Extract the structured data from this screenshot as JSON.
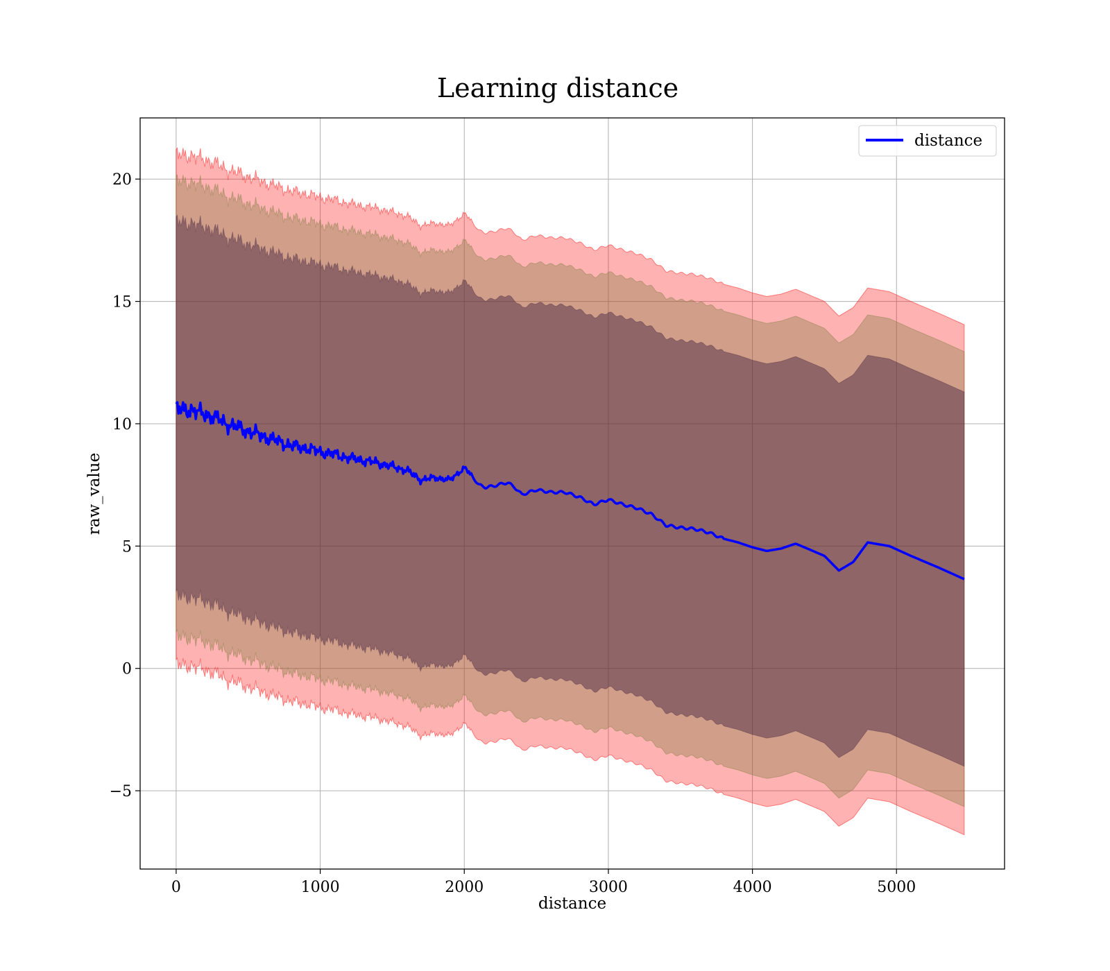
{
  "chart_data": {
    "type": "line",
    "title": "Learning distance",
    "xlabel": "distance",
    "ylabel": "raw_value",
    "xlim": [
      -250,
      5750
    ],
    "ylim": [
      -8.2,
      22.5
    ],
    "xticks": [
      0,
      1000,
      2000,
      3000,
      4000,
      5000
    ],
    "xtick_labels": [
      "0",
      "1000",
      "2000",
      "3000",
      "4000",
      "5000"
    ],
    "yticks": [
      -5,
      0,
      5,
      10,
      15,
      20
    ],
    "ytick_labels": [
      "−5",
      "0",
      "5",
      "10",
      "15",
      "20"
    ],
    "grid": true,
    "legend_position": "top-right",
    "colors": {
      "line": "#0000ff",
      "band": "#ff0000",
      "band_inner": "#3d1e3d",
      "band_mid": "#7a7a3d",
      "grid": "#b0b0b0"
    },
    "series": [
      {
        "name": "distance",
        "x": [
          0,
          50,
          100,
          150,
          200,
          250,
          300,
          350,
          400,
          450,
          500,
          600,
          700,
          800,
          900,
          1000,
          1100,
          1200,
          1300,
          1400,
          1500,
          1600,
          1700,
          1800,
          1900,
          2000,
          2050,
          2100,
          2150,
          2200,
          2300,
          2350,
          2400,
          2500,
          2600,
          2700,
          2800,
          2900,
          3000,
          3100,
          3200,
          3300,
          3400,
          3500,
          3600,
          3700,
          3800,
          3900,
          4000,
          4100,
          4200,
          4300,
          4400,
          4500,
          4600,
          4700,
          4800,
          4950,
          5100,
          5300,
          5470
        ],
        "y": [
          10.6,
          10.55,
          10.6,
          10.45,
          10.4,
          10.3,
          10.15,
          10.0,
          9.9,
          9.8,
          9.7,
          9.5,
          9.3,
          9.1,
          9.0,
          8.85,
          8.75,
          8.6,
          8.5,
          8.4,
          8.25,
          8.1,
          7.7,
          7.8,
          7.7,
          8.2,
          7.9,
          7.5,
          7.4,
          7.45,
          7.6,
          7.4,
          7.1,
          7.3,
          7.2,
          7.2,
          7.0,
          6.7,
          6.9,
          6.7,
          6.55,
          6.3,
          5.85,
          5.75,
          5.7,
          5.55,
          5.3,
          5.15,
          4.95,
          4.8,
          4.9,
          5.1,
          4.85,
          4.6,
          4.0,
          4.35,
          5.15,
          5.0,
          4.6,
          4.1,
          3.65
        ]
      }
    ],
    "bands": [
      {
        "upper_offset": 10.4,
        "lower_offset": -10.45
      },
      {
        "upper_offset": 9.3,
        "lower_offset": -9.3
      },
      {
        "upper_offset": 7.65,
        "lower_offset": -7.65
      }
    ],
    "noise_until": 2050
  }
}
